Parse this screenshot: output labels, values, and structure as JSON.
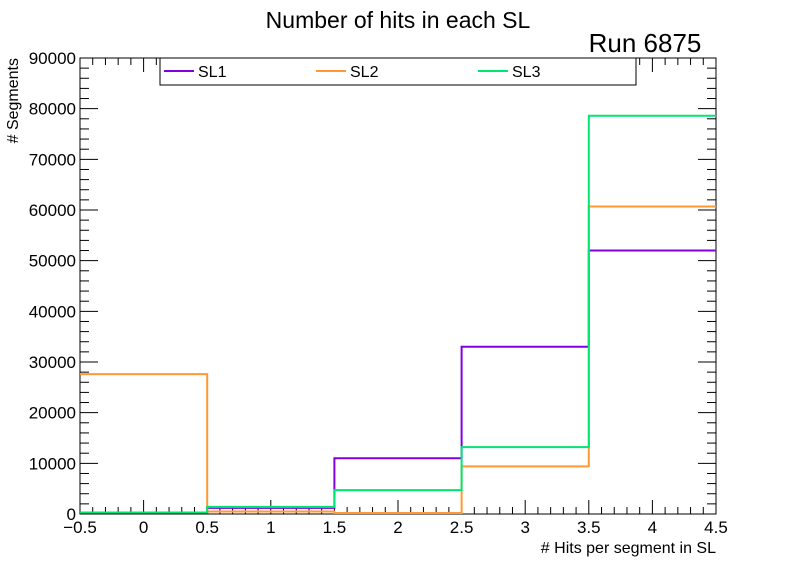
{
  "chart_data": {
    "type": "histogram",
    "title": "Number of hits in each SL",
    "annotation": "Run 6875",
    "xlabel": "# Hits per segment in SL",
    "ylabel": "# Segments",
    "xlim": [
      -0.5,
      4.5
    ],
    "ylim": [
      0,
      90000
    ],
    "x_bin_edges": [
      -0.5,
      0.5,
      1.5,
      2.5,
      3.5,
      4.5
    ],
    "x_tick_labels": [
      "−0.5",
      "0",
      "0.5",
      "1",
      "1.5",
      "2",
      "2.5",
      "3",
      "3.5",
      "4",
      "4.5"
    ],
    "y_tick_labels": [
      "0",
      "10000",
      "20000",
      "30000",
      "40000",
      "50000",
      "60000",
      "70000",
      "80000",
      "90000"
    ],
    "series": [
      {
        "name": "SL1",
        "color": "#8000e0",
        "values": [
          300,
          1200,
          11000,
          33000,
          52000
        ]
      },
      {
        "name": "SL2",
        "color": "#ff9933",
        "values": [
          27600,
          500,
          200,
          9400,
          60700
        ]
      },
      {
        "name": "SL3",
        "color": "#00e673",
        "values": [
          300,
          1400,
          4700,
          13200,
          78600
        ]
      }
    ]
  }
}
